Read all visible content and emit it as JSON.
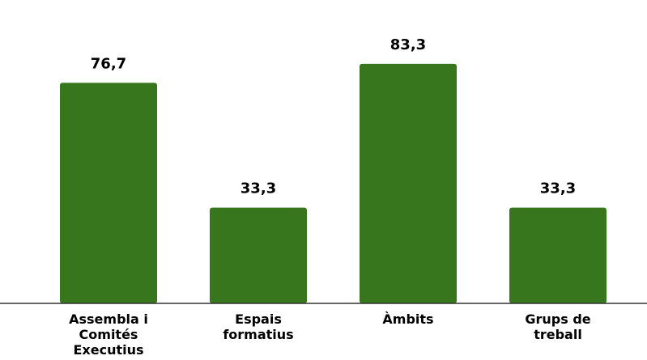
{
  "chart_data": {
    "type": "bar",
    "categories": [
      [
        "Assembla i",
        "Comités",
        "Executius"
      ],
      [
        "Espais",
        "formatius"
      ],
      [
        "Àmbits"
      ],
      [
        "Grups de",
        "treball"
      ]
    ],
    "values": [
      76.7,
      33.3,
      83.3,
      33.3
    ],
    "value_labels": [
      "76,7",
      "33,3",
      "83,3",
      "33,3"
    ],
    "bar_color": "#38761d",
    "ylim": [
      0,
      100
    ],
    "grid": false,
    "legend": "none"
  }
}
